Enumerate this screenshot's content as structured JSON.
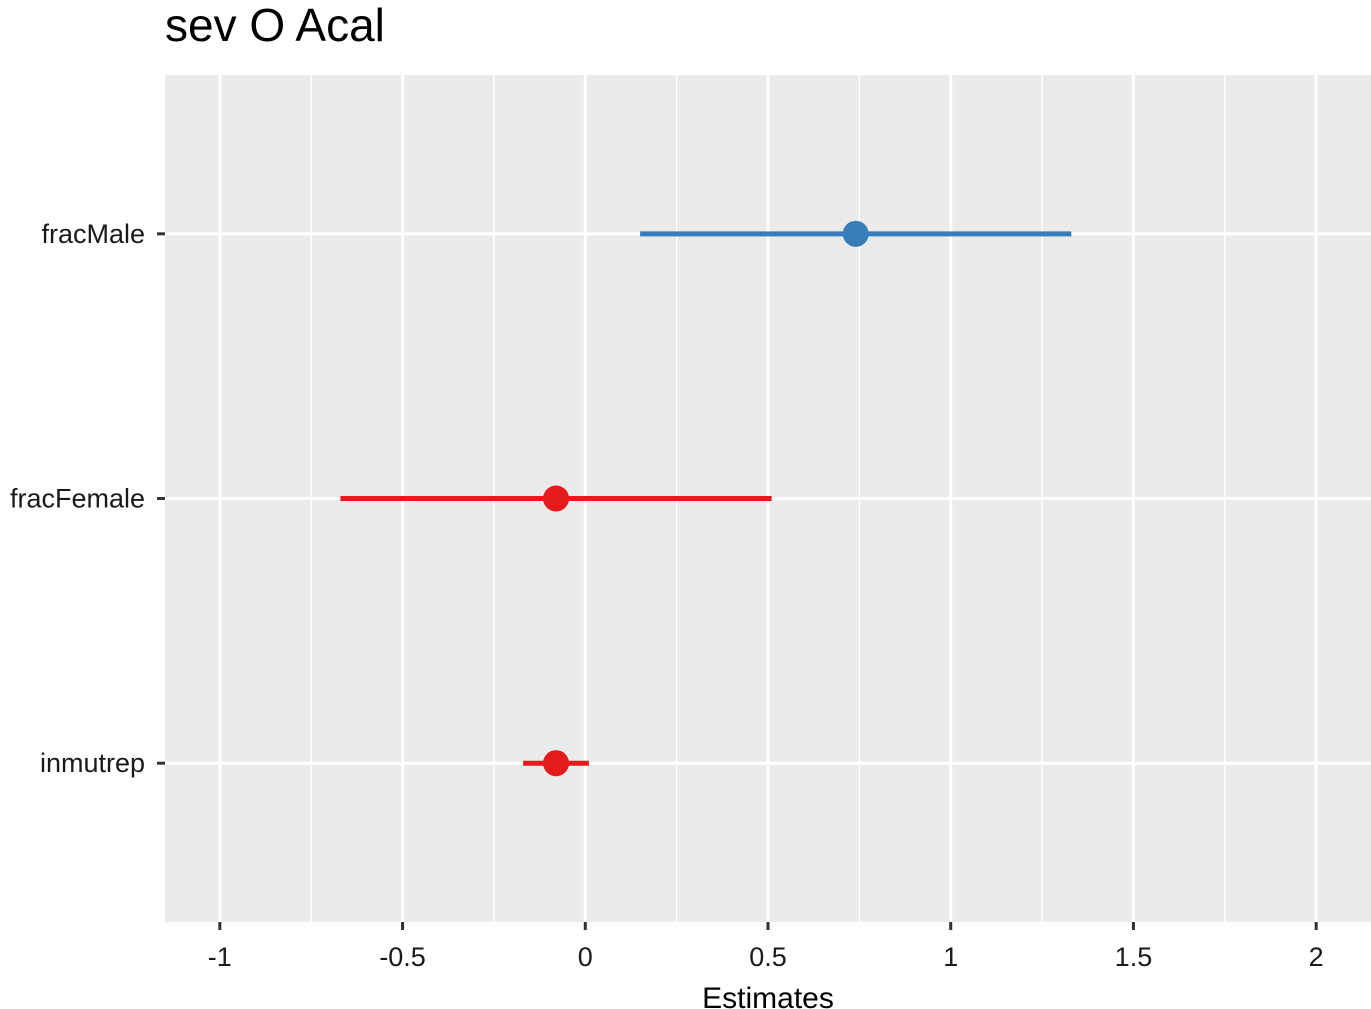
{
  "chart_data": {
    "type": "forest",
    "title": "sev O Acal",
    "xlabel": "Estimates",
    "ylabel": "",
    "xlim": [
      -1.15,
      2.15
    ],
    "x_ticks": [
      -1,
      -0.5,
      0,
      0.5,
      1,
      1.5,
      2
    ],
    "x_tick_labels": [
      "-1",
      "-0.5",
      "0",
      "0.5",
      "1",
      "1.5",
      "2"
    ],
    "categories": [
      "fracMale",
      "fracFemale",
      "inmutrep"
    ],
    "estimates": [
      {
        "term": "fracMale",
        "estimate": 0.74,
        "ci_low": 0.15,
        "ci_high": 1.33,
        "color": "#377eb8"
      },
      {
        "term": "fracFemale",
        "estimate": -0.08,
        "ci_low": -0.67,
        "ci_high": 0.51,
        "color": "#e41a1c"
      },
      {
        "term": "inmutrep",
        "estimate": -0.08,
        "ci_low": -0.17,
        "ci_high": 0.01,
        "color": "#e41a1c"
      }
    ],
    "grid": true,
    "legend": "none",
    "panel_background": "#ebebeb",
    "grid_color": "#ffffff"
  }
}
